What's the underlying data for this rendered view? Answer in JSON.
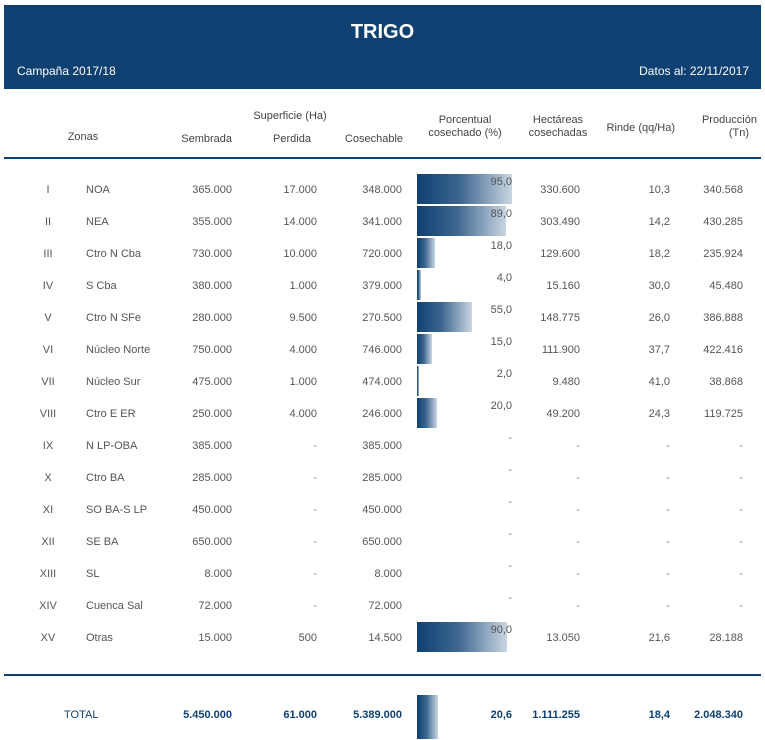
{
  "header": {
    "title": "TRIGO",
    "campaign": "Campaña 2017/18",
    "date_label": "Datos al: 22/11/2017"
  },
  "columns": {
    "zonas": "Zonas",
    "superficie": "Superficie (Ha)",
    "sembrada": "Sembrada",
    "perdida": "Perdida",
    "cosechable": "Cosechable",
    "porcentual_1": "Porcentual",
    "porcentual_2": "cosechado (%)",
    "hectareas_1": "Hectáreas",
    "hectareas_2": "cosechadas",
    "rinde": "Rinde (qq/Ha)",
    "produccion_1": "Producción",
    "produccion_2": "(Tn)"
  },
  "rows": [
    {
      "roman": "I",
      "zona": "NOA",
      "sembrada": "365.000",
      "perdida": "17.000",
      "cosechable": "348.000",
      "pct": "95,0",
      "pct_value": 95.0,
      "hectareas": "330.600",
      "rinde": "10,3",
      "produccion": "340.568"
    },
    {
      "roman": "II",
      "zona": "NEA",
      "sembrada": "355.000",
      "perdida": "14.000",
      "cosechable": "341.000",
      "pct": "89,0",
      "pct_value": 89.0,
      "hectareas": "303.490",
      "rinde": "14,2",
      "produccion": "430.285"
    },
    {
      "roman": "III",
      "zona": "Ctro N Cba",
      "sembrada": "730.000",
      "perdida": "10.000",
      "cosechable": "720.000",
      "pct": "18,0",
      "pct_value": 18.0,
      "hectareas": "129.600",
      "rinde": "18,2",
      "produccion": "235.924"
    },
    {
      "roman": "IV",
      "zona": "S Cba",
      "sembrada": "380.000",
      "perdida": "1.000",
      "cosechable": "379.000",
      "pct": "4,0",
      "pct_value": 4.0,
      "hectareas": "15.160",
      "rinde": "30,0",
      "produccion": "45.480"
    },
    {
      "roman": "V",
      "zona": "Ctro N SFe",
      "sembrada": "280.000",
      "perdida": "9.500",
      "cosechable": "270.500",
      "pct": "55,0",
      "pct_value": 55.0,
      "hectareas": "148.775",
      "rinde": "26,0",
      "produccion": "386.888"
    },
    {
      "roman": "VI",
      "zona": "Núcleo Norte",
      "sembrada": "750.000",
      "perdida": "4.000",
      "cosechable": "746.000",
      "pct": "15,0",
      "pct_value": 15.0,
      "hectareas": "111.900",
      "rinde": "37,7",
      "produccion": "422.416"
    },
    {
      "roman": "VII",
      "zona": "Núcleo Sur",
      "sembrada": "475.000",
      "perdida": "1.000",
      "cosechable": "474.000",
      "pct": "2,0",
      "pct_value": 2.0,
      "hectareas": "9.480",
      "rinde": "41,0",
      "produccion": "38.868"
    },
    {
      "roman": "VIII",
      "zona": "Ctro E ER",
      "sembrada": "250.000",
      "perdida": "4.000",
      "cosechable": "246.000",
      "pct": "20,0",
      "pct_value": 20.0,
      "hectareas": "49.200",
      "rinde": "24,3",
      "produccion": "119.725"
    },
    {
      "roman": "IX",
      "zona": "N LP-OBA",
      "sembrada": "385.000",
      "perdida": "-",
      "cosechable": "385.000",
      "pct": "-",
      "pct_value": 0,
      "hectareas": "-",
      "rinde": "-",
      "produccion": "-"
    },
    {
      "roman": "X",
      "zona": "Ctro BA",
      "sembrada": "285.000",
      "perdida": "-",
      "cosechable": "285.000",
      "pct": "-",
      "pct_value": 0,
      "hectareas": "-",
      "rinde": "-",
      "produccion": "-"
    },
    {
      "roman": "XI",
      "zona": "SO BA-S LP",
      "sembrada": "450.000",
      "perdida": "-",
      "cosechable": "450.000",
      "pct": "-",
      "pct_value": 0,
      "hectareas": "-",
      "rinde": "-",
      "produccion": "-"
    },
    {
      "roman": "XII",
      "zona": "SE BA",
      "sembrada": "650.000",
      "perdida": "-",
      "cosechable": "650.000",
      "pct": "-",
      "pct_value": 0,
      "hectareas": "-",
      "rinde": "-",
      "produccion": "-"
    },
    {
      "roman": "XIII",
      "zona": "SL",
      "sembrada": "8.000",
      "perdida": "-",
      "cosechable": "8.000",
      "pct": "-",
      "pct_value": 0,
      "hectareas": "-",
      "rinde": "-",
      "produccion": "-"
    },
    {
      "roman": "XIV",
      "zona": "Cuenca Sal",
      "sembrada": "72.000",
      "perdida": "-",
      "cosechable": "72.000",
      "pct": "-",
      "pct_value": 0,
      "hectareas": "-",
      "rinde": "-",
      "produccion": "-"
    },
    {
      "roman": "XV",
      "zona": "Otras",
      "sembrada": "15.000",
      "perdida": "500",
      "cosechable": "14.500",
      "pct": "90,0",
      "pct_value": 90.0,
      "hectareas": "13.050",
      "rinde": "21,6",
      "produccion": "28.188"
    }
  ],
  "total": {
    "label": "TOTAL",
    "sembrada": "5.450.000",
    "perdida": "61.000",
    "cosechable": "5.389.000",
    "pct": "20,6",
    "pct_value": 20.6,
    "hectareas": "1.111.255",
    "rinde": "18,4",
    "produccion": "2.048.340"
  },
  "colors": {
    "header_bg": "#0e4072",
    "bar_dark": "#0e4072",
    "bar_light": "#c9d6e2"
  }
}
